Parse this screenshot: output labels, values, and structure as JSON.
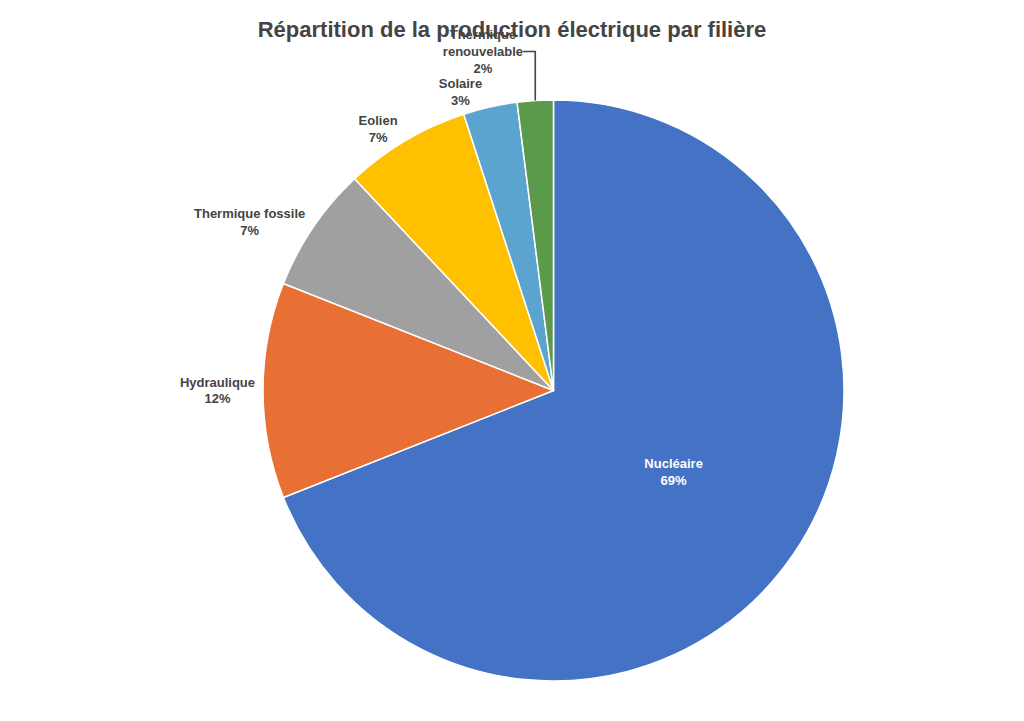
{
  "chart_data": {
    "type": "pie",
    "title": "Répartition de la production électrique par filière",
    "categories": [
      "Nucléaire\n69%",
      "Hydraulique\n12%",
      "Thermique fossile\n7%",
      "Eolien\n7%",
      "Solaire\n3%",
      "Thermique\nrenouvelable\n2%"
    ],
    "values": [
      69,
      12,
      7,
      7,
      3,
      2
    ],
    "colors": [
      "#4472C4",
      "#E87035",
      "#A0A0A0",
      "#FFC000",
      "#5BA4CF",
      "#5A9A4A"
    ]
  }
}
